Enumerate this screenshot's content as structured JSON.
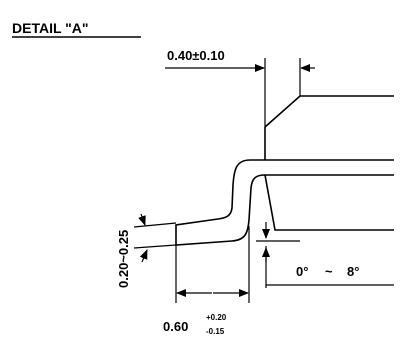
{
  "title": "DETAIL \"A\"",
  "dimensions": {
    "lead_thickness_top": "0.40±0.10",
    "thickness_range": "0.20~0.25",
    "angle_start": "0°",
    "angle_sep": "~",
    "angle_end": "8°",
    "foot_length": "0.60",
    "foot_tol_plus": "+0.20",
    "foot_tol_minus": "-0.15"
  }
}
